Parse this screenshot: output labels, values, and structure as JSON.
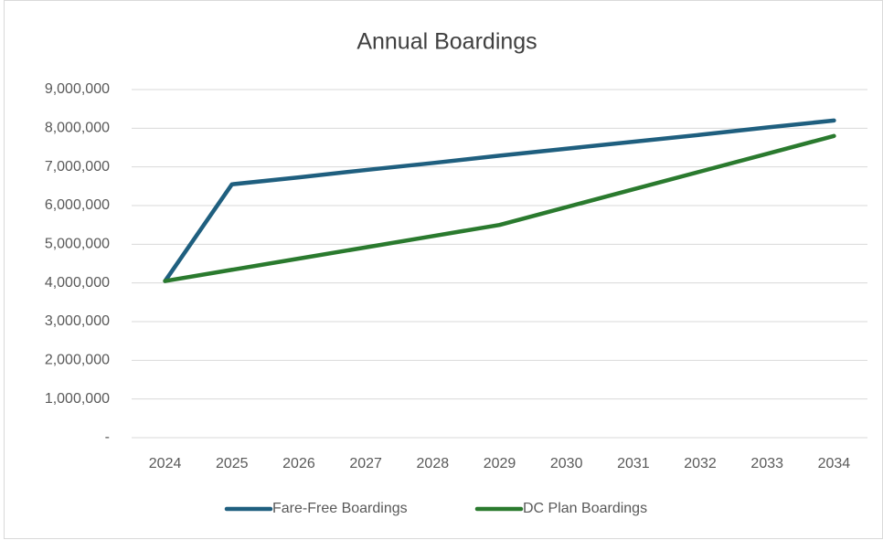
{
  "chart_data": {
    "type": "line",
    "title": "Annual Boardings",
    "categories": [
      "2024",
      "2025",
      "2026",
      "2027",
      "2028",
      "2029",
      "2030",
      "2031",
      "2032",
      "2033",
      "2034"
    ],
    "series": [
      {
        "name": "Fare-Free Boardings",
        "color": "#1f5f7f",
        "values": [
          4050000,
          6550000,
          6730000,
          6920000,
          7100000,
          7290000,
          7470000,
          7650000,
          7830000,
          8020000,
          8200000
        ]
      },
      {
        "name": "DC Plan Boardings",
        "color": "#2a7a2e",
        "values": [
          4050000,
          4340000,
          4630000,
          4920000,
          5210000,
          5500000,
          5960000,
          6420000,
          6880000,
          7340000,
          7800000
        ]
      }
    ],
    "ylim": [
      0,
      9000000
    ],
    "yticks": [
      {
        "value": 0,
        "label": "-"
      },
      {
        "value": 1000000,
        "label": "1,000,000"
      },
      {
        "value": 2000000,
        "label": "2,000,000"
      },
      {
        "value": 3000000,
        "label": "3,000,000"
      },
      {
        "value": 4000000,
        "label": "4,000,000"
      },
      {
        "value": 5000000,
        "label": "5,000,000"
      },
      {
        "value": 6000000,
        "label": "6,000,000"
      },
      {
        "value": 7000000,
        "label": "7,000,000"
      },
      {
        "value": 8000000,
        "label": "8,000,000"
      },
      {
        "value": 9000000,
        "label": "9,000,000"
      }
    ],
    "grid": true,
    "legend": "bottom"
  }
}
